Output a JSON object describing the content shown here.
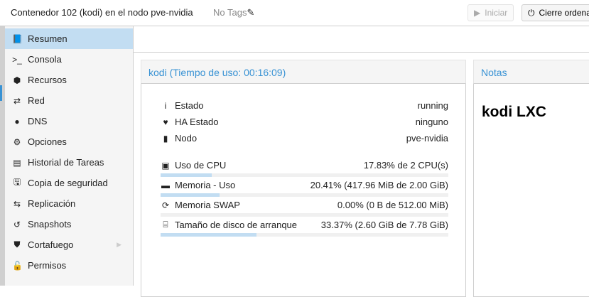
{
  "header": {
    "title": "Contenedor 102 (kodi) en el nodo pve-nvidia",
    "tags": "No Tags",
    "start_label": "Iniciar",
    "shutdown_label": "Cierre ordena"
  },
  "sidebar": {
    "items": [
      {
        "label": "Resumen",
        "icon": "book-icon",
        "glyph": "📘",
        "active": true
      },
      {
        "label": "Consola",
        "icon": "terminal-icon",
        "glyph": ">_"
      },
      {
        "label": "Recursos",
        "icon": "cube-icon",
        "glyph": "⬢"
      },
      {
        "label": "Red",
        "icon": "exchange-icon",
        "glyph": "⇄"
      },
      {
        "label": "DNS",
        "icon": "globe-icon",
        "glyph": "●"
      },
      {
        "label": "Opciones",
        "icon": "gear-icon",
        "glyph": "⚙"
      },
      {
        "label": "Historial de Tareas",
        "icon": "list-icon",
        "glyph": "▤"
      },
      {
        "label": "Copia de seguridad",
        "icon": "floppy-icon",
        "glyph": "🖫"
      },
      {
        "label": "Replicación",
        "icon": "retweet-icon",
        "glyph": "⇆"
      },
      {
        "label": "Snapshots",
        "icon": "history-icon",
        "glyph": "↺"
      },
      {
        "label": "Cortafuego",
        "icon": "shield-icon",
        "glyph": "⛊"
      },
      {
        "label": "Permisos",
        "icon": "unlock-icon",
        "glyph": "🔓"
      }
    ]
  },
  "summary": {
    "title": "kodi (Tiempo de uso: 00:16:09)",
    "status": [
      {
        "label": "Estado",
        "value": "running",
        "icon": "info-icon",
        "glyph": "i"
      },
      {
        "label": "HA Estado",
        "value": "ninguno",
        "icon": "heartbeat-icon",
        "glyph": "♥"
      },
      {
        "label": "Nodo",
        "value": "pve-nvidia",
        "icon": "server-icon",
        "glyph": "▮"
      }
    ],
    "usage": [
      {
        "label": "Uso de CPU",
        "value": "17.83% de 2 CPU(s)",
        "percent": 17.83,
        "icon": "cpu-icon",
        "glyph": "▣"
      },
      {
        "label": "Memoria - Uso",
        "value": "20.41% (417.96 MiB de 2.00 GiB)",
        "percent": 20.41,
        "icon": "memory-icon",
        "glyph": "▬"
      },
      {
        "label": "Memoria SWAP",
        "value": "0.00% (0 B de 512.00 MiB)",
        "percent": 0,
        "icon": "refresh-icon",
        "glyph": "⟳"
      },
      {
        "label": "Tamaño de disco de arranque",
        "value": "33.37% (2.60 GiB de 7.78 GiB)",
        "percent": 33.37,
        "icon": "hdd-icon",
        "glyph": "⌸"
      }
    ]
  },
  "notes": {
    "title": "Notas",
    "content": "kodi LXC"
  }
}
